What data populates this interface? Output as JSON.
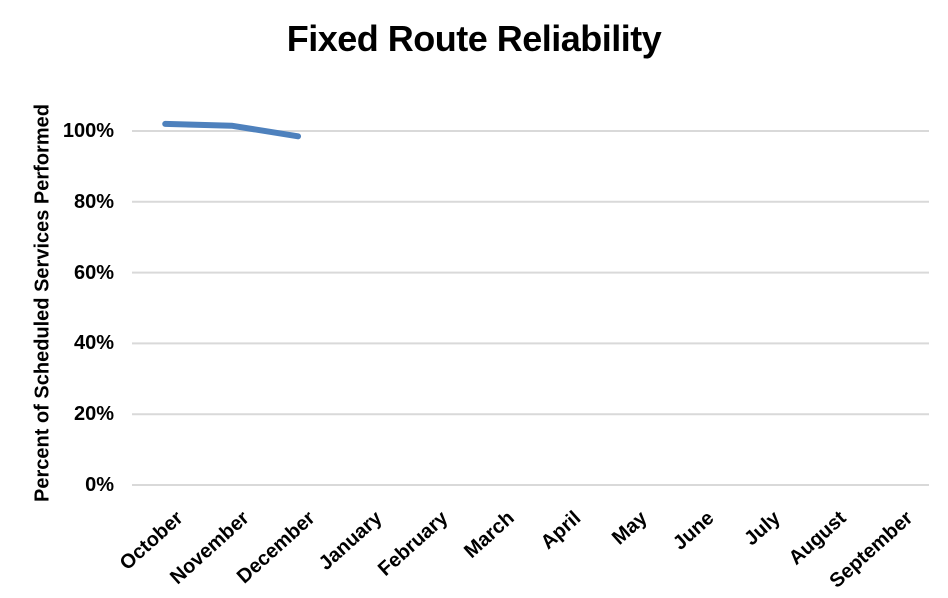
{
  "chart_data": {
    "type": "line",
    "title": "Fixed Route Reliability",
    "xlabel": "",
    "ylabel": "Percent of Scheduled Services Performed",
    "categories": [
      "October",
      "November",
      "December",
      "January",
      "February",
      "March",
      "April",
      "May",
      "June",
      "July",
      "August",
      "September"
    ],
    "series": [
      {
        "values": [
          102,
          101.5,
          98.5,
          null,
          null,
          null,
          null,
          null,
          null,
          null,
          null,
          null
        ]
      }
    ],
    "y_ticks": [
      0,
      20,
      40,
      60,
      80,
      100
    ],
    "y_tick_labels": [
      "0%",
      "20%",
      "40%",
      "60%",
      "80%",
      "100%"
    ],
    "ylim": [
      0,
      110
    ],
    "grid": "horizontal-only",
    "legend_position": "none",
    "colors": {
      "line": "#4E81BD",
      "gridline": "#D9D9D9",
      "axis_line": "#D9D9D9",
      "text": "#000000",
      "background": "#FFFFFF"
    }
  }
}
